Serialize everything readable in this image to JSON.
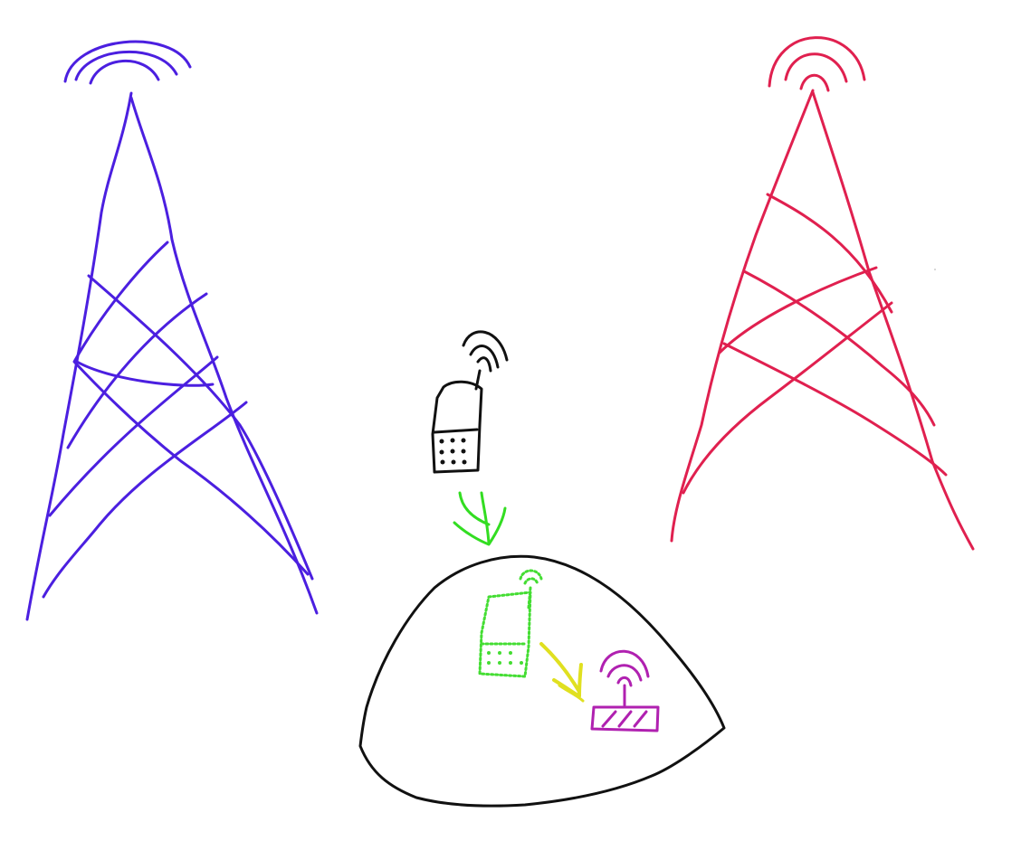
{
  "diagram": {
    "elements": [
      "left-cell-tower",
      "right-cell-tower",
      "mobile-phone",
      "signal-arrow",
      "building",
      "indoor-phone",
      "handoff-arrow",
      "wifi-router"
    ]
  },
  "colors": {
    "background": "#ffffff",
    "left_tower": "#4b1fe0",
    "right_tower": "#e0204f",
    "phone": "#111111",
    "green_arrow": "#33dd22",
    "building": "#111111",
    "indoor_phone": "#44dd33",
    "yellow_arrow": "#e0e020",
    "router": "#b021b0"
  }
}
